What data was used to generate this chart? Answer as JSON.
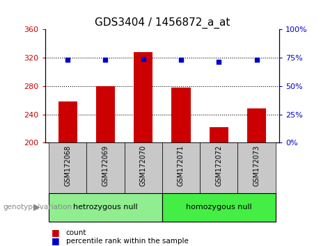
{
  "title": "GDS3404 / 1456872_a_at",
  "categories": [
    "GSM172068",
    "GSM172069",
    "GSM172070",
    "GSM172071",
    "GSM172072",
    "GSM172073"
  ],
  "bar_values": [
    258,
    280,
    328,
    278,
    222,
    248
  ],
  "percentile_values": [
    73.5,
    73.5,
    74.0,
    73.5,
    71.5,
    73.0
  ],
  "ylim_left": [
    200,
    360
  ],
  "ylim_right": [
    0,
    100
  ],
  "yticks_left": [
    200,
    240,
    280,
    320,
    360
  ],
  "yticks_right": [
    0,
    25,
    50,
    75,
    100
  ],
  "bar_color": "#cc0000",
  "dot_color": "#0000cc",
  "bg_color": "#ffffff",
  "plot_bg": "#ffffff",
  "group1_label": "hetrozygous null",
  "group2_label": "homozygous null",
  "group1_color": "#90ee90",
  "group2_color": "#44ee44",
  "group1_indices": [
    0,
    1,
    2
  ],
  "group2_indices": [
    3,
    4,
    5
  ],
  "genotype_label": "genotype/variation",
  "legend_count_label": "count",
  "legend_percentile_label": "percentile rank within the sample",
  "tick_label_color_left": "#cc0000",
  "tick_label_color_right": "#0000cc",
  "title_fontsize": 11,
  "tick_fontsize": 8,
  "bar_width": 0.5,
  "xlabel_area_color": "#c8c8c8"
}
